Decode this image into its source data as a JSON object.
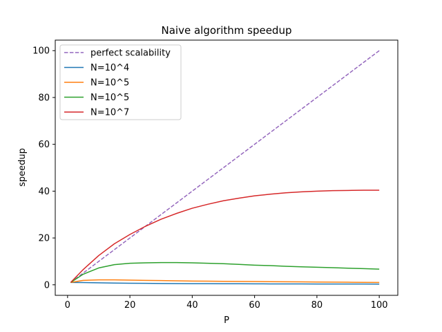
{
  "chart_data": {
    "type": "line",
    "title": "Naive algorithm speedup",
    "xlabel": "P",
    "ylabel": "speedup",
    "xlim": [
      -3.95,
      105.95
    ],
    "ylim": [
      -4.5,
      104.5
    ],
    "xticks": [
      0,
      20,
      40,
      60,
      80,
      100
    ],
    "yticks": [
      0,
      20,
      40,
      60,
      80,
      100
    ],
    "grid": false,
    "legend_position": "top-left",
    "x": [
      1,
      5,
      10,
      15,
      20,
      25,
      30,
      35,
      40,
      45,
      50,
      55,
      60,
      65,
      70,
      75,
      80,
      85,
      90,
      95,
      100
    ],
    "series": [
      {
        "name": "perfect scalability",
        "style": "dashed",
        "color": "#9467bd",
        "values": [
          1,
          5,
          10,
          15,
          20,
          25,
          30,
          35,
          40,
          45,
          50,
          55,
          60,
          65,
          70,
          75,
          80,
          85,
          90,
          95,
          100
        ]
      },
      {
        "name": "N=10^4",
        "style": "solid",
        "color": "#1f77b4",
        "values": [
          1,
          0.95,
          0.85,
          0.75,
          0.68,
          0.62,
          0.57,
          0.53,
          0.5,
          0.47,
          0.45,
          0.43,
          0.41,
          0.39,
          0.38,
          0.36,
          0.35,
          0.34,
          0.33,
          0.32,
          0.31
        ]
      },
      {
        "name": "N=10^5",
        "style": "solid",
        "color": "#ff7f0e",
        "values": [
          1,
          1.9,
          2.1,
          2.1,
          2.0,
          1.9,
          1.8,
          1.7,
          1.6,
          1.55,
          1.5,
          1.45,
          1.4,
          1.35,
          1.3,
          1.25,
          1.2,
          1.15,
          1.1,
          1.05,
          1.0
        ]
      },
      {
        "name": "N=10^5",
        "style": "solid",
        "color": "#2ca02c",
        "values": [
          1,
          4.5,
          7.2,
          8.6,
          9.2,
          9.4,
          9.5,
          9.5,
          9.4,
          9.2,
          9.0,
          8.7,
          8.4,
          8.2,
          7.9,
          7.7,
          7.5,
          7.3,
          7.1,
          6.9,
          6.7
        ]
      },
      {
        "name": "N=10^7",
        "style": "solid",
        "color": "#d62728",
        "values": [
          1,
          6.5,
          12.5,
          17.5,
          21.5,
          25.0,
          28.0,
          30.5,
          32.7,
          34.4,
          35.9,
          37.0,
          38.0,
          38.7,
          39.3,
          39.7,
          40.0,
          40.2,
          40.3,
          40.4,
          40.4
        ]
      }
    ]
  }
}
